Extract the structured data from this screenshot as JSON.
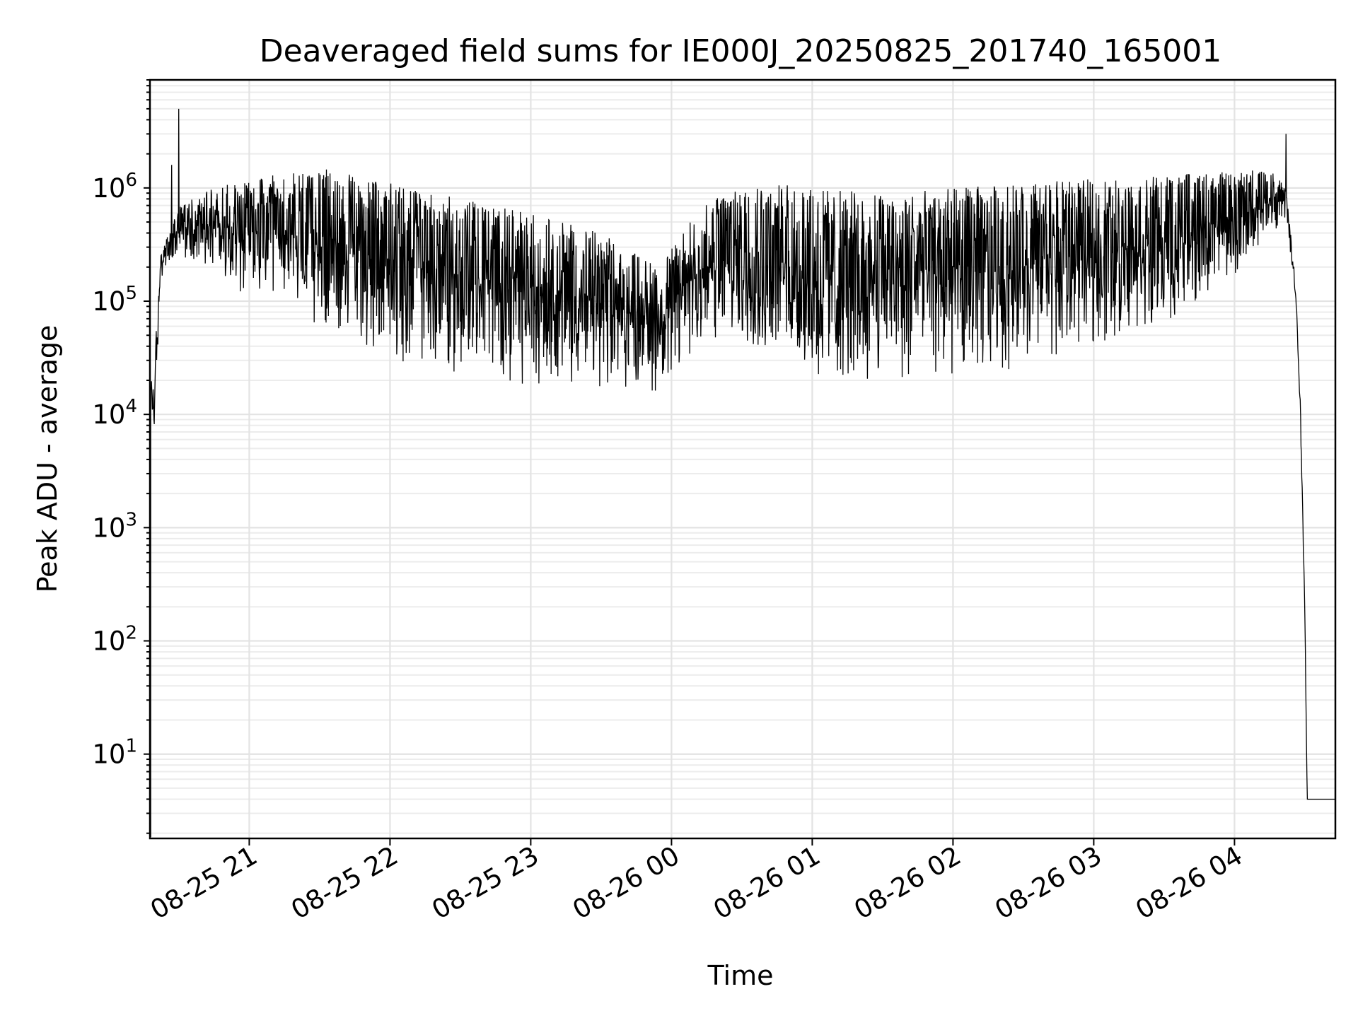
{
  "chart_data": {
    "type": "line",
    "title": "Deaveraged field sums for IE000J_20250825_201740_165001",
    "xlabel": "Time",
    "ylabel": "Peak ADU - average",
    "yscale": "log",
    "grid": "on (major and minor)",
    "line_color": "#000000",
    "xlim": [
      "2025-08-25 20:17:40",
      "2025-08-26 04:43:00"
    ],
    "ylim": [
      1.8,
      9000000
    ],
    "x_ticks": [
      {
        "value": "2025-08-25 21:00",
        "label": "08-25 21"
      },
      {
        "value": "2025-08-25 22:00",
        "label": "08-25 22"
      },
      {
        "value": "2025-08-25 23:00",
        "label": "08-25 23"
      },
      {
        "value": "2025-08-26 00:00",
        "label": "08-26 00"
      },
      {
        "value": "2025-08-26 01:00",
        "label": "08-26 01"
      },
      {
        "value": "2025-08-26 02:00",
        "label": "08-26 02"
      },
      {
        "value": "2025-08-26 03:00",
        "label": "08-26 03"
      },
      {
        "value": "2025-08-26 04:00",
        "label": "08-26 04"
      }
    ],
    "y_ticks": [
      {
        "value": 10,
        "base": "10",
        "exp": "1"
      },
      {
        "value": 100,
        "base": "10",
        "exp": "2"
      },
      {
        "value": 1000,
        "base": "10",
        "exp": "3"
      },
      {
        "value": 10000,
        "base": "10",
        "exp": "4"
      },
      {
        "value": 100000,
        "base": "10",
        "exp": "5"
      },
      {
        "value": 1000000,
        "base": "10",
        "exp": "6"
      }
    ],
    "series": [
      {
        "style": "thin line with dense oscillation between the upper and lower envelopes",
        "upper_envelope": [
          {
            "x": "2025-08-25 20:18",
            "y": 20000
          },
          {
            "x": "2025-08-25 20:20",
            "y": 40000
          },
          {
            "x": "2025-08-25 20:22",
            "y": 250000
          },
          {
            "x": "2025-08-25 20:30",
            "y": 700000
          },
          {
            "x": "2025-08-25 20:45",
            "y": 1000000
          },
          {
            "x": "2025-08-25 21:00",
            "y": 1200000
          },
          {
            "x": "2025-08-25 21:30",
            "y": 1500000
          },
          {
            "x": "2025-08-25 22:00",
            "y": 1100000
          },
          {
            "x": "2025-08-25 22:30",
            "y": 800000
          },
          {
            "x": "2025-08-25 23:00",
            "y": 600000
          },
          {
            "x": "2025-08-25 23:30",
            "y": 400000
          },
          {
            "x": "2025-08-25 23:55",
            "y": 200000
          },
          {
            "x": "2025-08-26 00:10",
            "y": 600000
          },
          {
            "x": "2025-08-26 00:30",
            "y": 1200000
          },
          {
            "x": "2025-08-26 01:00",
            "y": 1000000
          },
          {
            "x": "2025-08-26 01:30",
            "y": 900000
          },
          {
            "x": "2025-08-26 02:00",
            "y": 1000000
          },
          {
            "x": "2025-08-26 02:30",
            "y": 1100000
          },
          {
            "x": "2025-08-26 03:00",
            "y": 1200000
          },
          {
            "x": "2025-08-26 03:30",
            "y": 1300000
          },
          {
            "x": "2025-08-26 04:00",
            "y": 1400000
          },
          {
            "x": "2025-08-26 04:15",
            "y": 1500000
          },
          {
            "x": "2025-08-26 04:22",
            "y": 1000000
          },
          {
            "x": "2025-08-26 04:26",
            "y": 150000
          },
          {
            "x": "2025-08-26 04:28",
            "y": 15000
          },
          {
            "x": "2025-08-26 04:30",
            "y": 200
          },
          {
            "x": "2025-08-26 04:31",
            "y": 4
          },
          {
            "x": "2025-08-26 04:43",
            "y": 4
          }
        ],
        "lower_envelope": [
          {
            "x": "2025-08-25 20:18",
            "y": 8000
          },
          {
            "x": "2025-08-25 20:20",
            "y": 6000
          },
          {
            "x": "2025-08-25 20:22",
            "y": 150000
          },
          {
            "x": "2025-08-25 20:30",
            "y": 250000
          },
          {
            "x": "2025-08-25 20:45",
            "y": 200000
          },
          {
            "x": "2025-08-25 21:00",
            "y": 100000
          },
          {
            "x": "2025-08-25 21:30",
            "y": 60000
          },
          {
            "x": "2025-08-25 22:00",
            "y": 30000
          },
          {
            "x": "2025-08-25 22:30",
            "y": 22000
          },
          {
            "x": "2025-08-25 23:00",
            "y": 18000
          },
          {
            "x": "2025-08-25 23:30",
            "y": 17000
          },
          {
            "x": "2025-08-25 23:55",
            "y": 15000
          },
          {
            "x": "2025-08-26 00:10",
            "y": 35000
          },
          {
            "x": "2025-08-26 00:30",
            "y": 40000
          },
          {
            "x": "2025-08-26 01:00",
            "y": 18000
          },
          {
            "x": "2025-08-26 01:30",
            "y": 18000
          },
          {
            "x": "2025-08-26 02:00",
            "y": 20000
          },
          {
            "x": "2025-08-26 02:30",
            "y": 25000
          },
          {
            "x": "2025-08-26 03:00",
            "y": 40000
          },
          {
            "x": "2025-08-26 03:30",
            "y": 60000
          },
          {
            "x": "2025-08-26 04:00",
            "y": 150000
          },
          {
            "x": "2025-08-26 04:15",
            "y": 400000
          },
          {
            "x": "2025-08-26 04:22",
            "y": 500000
          },
          {
            "x": "2025-08-26 04:26",
            "y": 100000
          },
          {
            "x": "2025-08-26 04:28",
            "y": 9000
          },
          {
            "x": "2025-08-26 04:30",
            "y": 150
          },
          {
            "x": "2025-08-26 04:31",
            "y": 4
          },
          {
            "x": "2025-08-26 04:43",
            "y": 4
          }
        ],
        "notable_points": [
          {
            "x": "2025-08-25 20:27",
            "y": 1600000
          },
          {
            "x": "2025-08-25 20:30",
            "y": 5000000
          },
          {
            "x": "2025-08-26 04:22",
            "y": 3000000
          }
        ]
      }
    ]
  }
}
